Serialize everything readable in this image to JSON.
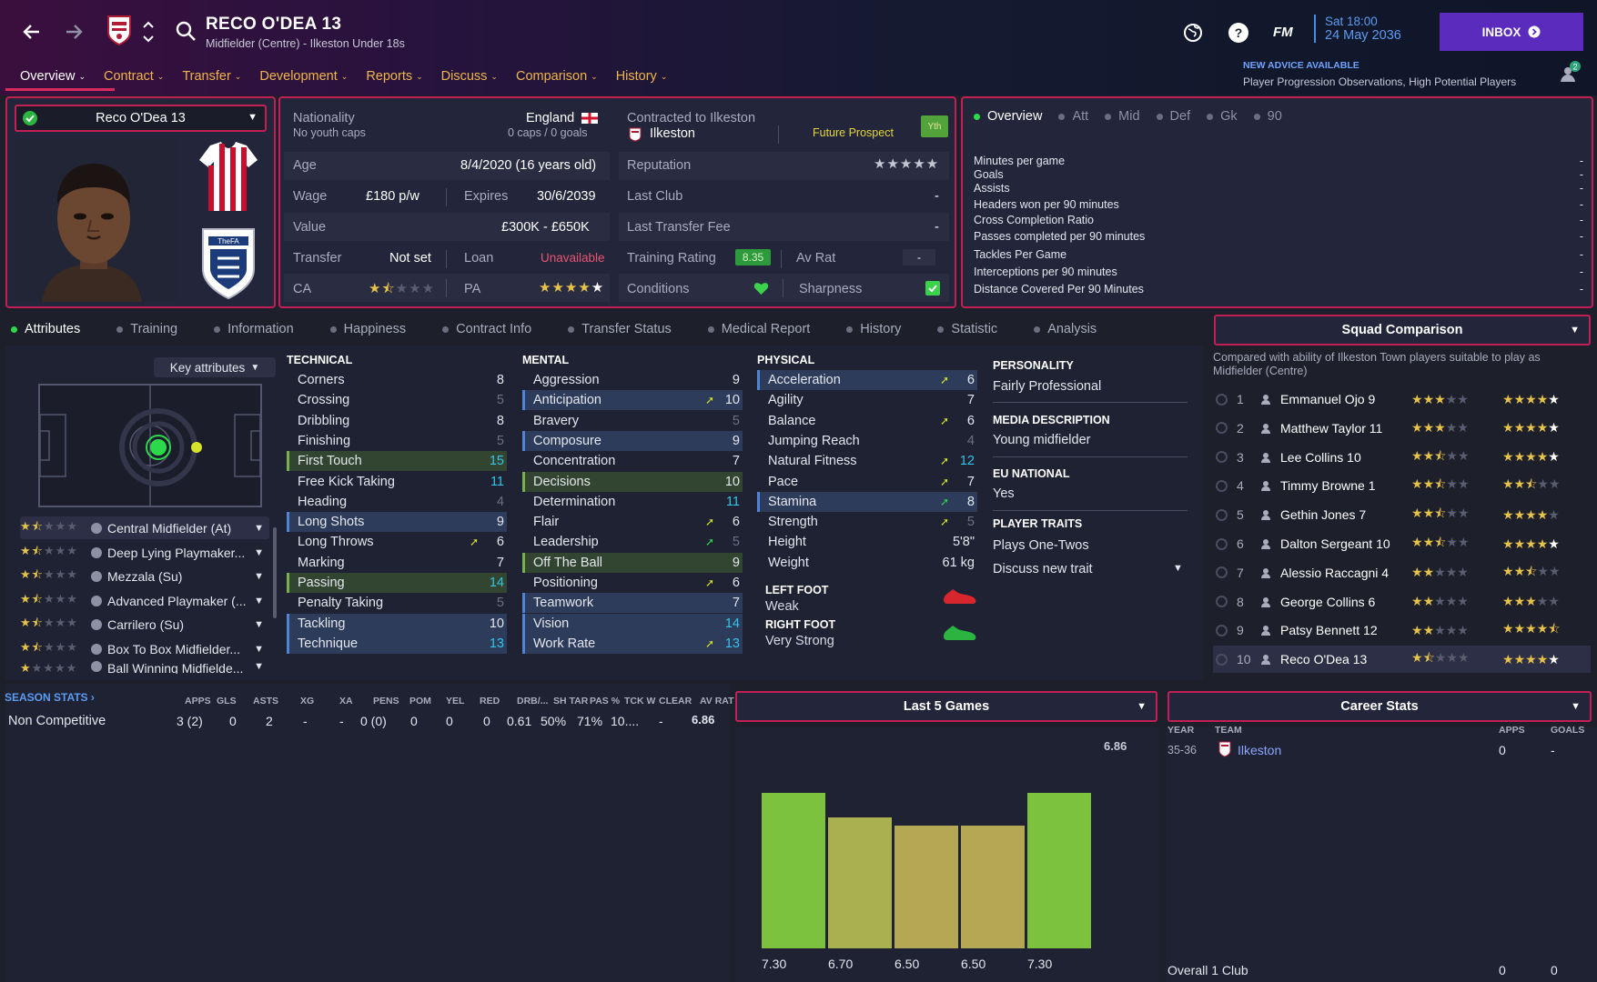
{
  "header": {
    "player_name": "RECO O'DEA 13",
    "subtitle": "Midfielder (Centre) - Ilkeston Under 18s",
    "fm": "FM",
    "time": "Sat 18:00",
    "date": "24 May 2036",
    "inbox": "INBOX",
    "advice_title": "NEW ADVICE AVAILABLE",
    "advice_text": "Player Progression Observations, High Potential Players",
    "advice_count": "2"
  },
  "menu": [
    "Overview",
    "Contract",
    "Transfer",
    "Development",
    "Reports",
    "Discuss",
    "Comparison",
    "History"
  ],
  "profile": {
    "name_select": "Reco O'Dea 13",
    "nationality_label": "Nationality",
    "nationality": "England",
    "youth_caps": "No youth caps",
    "caps": "0 caps / 0 goals",
    "contracted_label": "Contracted to Ilkeston",
    "club": "Ilkeston",
    "future_prospect": "Future Prospect",
    "yth": "Yth",
    "age_label": "Age",
    "age": "8/4/2020 (16 years old)",
    "reputation_label": "Reputation",
    "wage_label": "Wage",
    "wage": "£180 p/w",
    "expires_label": "Expires",
    "expires": "30/6/2039",
    "last_club_label": "Last Club",
    "last_club": "-",
    "value_label": "Value",
    "value": "£300K - £650K",
    "last_fee_label": "Last Transfer Fee",
    "last_fee": "-",
    "transfer_label": "Transfer",
    "transfer": "Not set",
    "loan_label": "Loan",
    "loan": "Unavailable",
    "training_label": "Training Rating",
    "training": "8.35",
    "avrat_label": "Av Rat",
    "avrat": "-",
    "ca_label": "CA",
    "pa_label": "PA",
    "conditions_label": "Conditions",
    "sharpness_label": "Sharpness"
  },
  "overview": {
    "tabs": [
      "Overview",
      "Att",
      "Mid",
      "Def",
      "Gk",
      "90"
    ],
    "stats": [
      {
        "label": "Minutes per game",
        "value": "-"
      },
      {
        "label": "Goals",
        "value": "-"
      },
      {
        "label": "Assists",
        "value": "-"
      },
      {
        "label": "Headers won per 90 minutes",
        "value": "-"
      },
      {
        "label": "Cross Completion Ratio",
        "value": "-"
      },
      {
        "label": "Passes completed per 90 minutes",
        "value": "-"
      },
      {
        "label": "Tackles Per Game",
        "value": "-"
      },
      {
        "label": "Interceptions per 90 minutes",
        "value": "-"
      },
      {
        "label": "Distance Covered Per 90 Minutes",
        "value": "-"
      }
    ]
  },
  "subtabs": [
    "Attributes",
    "Training",
    "Information",
    "Happiness",
    "Contract Info",
    "Transfer Status",
    "Medical Report",
    "History",
    "Statistic",
    "Analysis"
  ],
  "key_attributes": "Key attributes",
  "roles": [
    {
      "label": "Central Midfielder (At)",
      "stars": 1.5
    },
    {
      "label": "Deep Lying Playmaker...",
      "stars": 1.5
    },
    {
      "label": "Mezzala (Su)",
      "stars": 1.5
    },
    {
      "label": "Advanced Playmaker (...",
      "stars": 1.5
    },
    {
      "label": "Carrilero (Su)",
      "stars": 1.5
    },
    {
      "label": "Box To Box Midfielder...",
      "stars": 1.5
    },
    {
      "label": "Ball Winning Midfielde...",
      "stars": 1
    }
  ],
  "technical": {
    "title": "TECHNICAL",
    "items": [
      {
        "name": "Corners",
        "value": "8"
      },
      {
        "name": "Crossing",
        "value": "5"
      },
      {
        "name": "Dribbling",
        "value": "8"
      },
      {
        "name": "Finishing",
        "value": "5"
      },
      {
        "name": "First Touch",
        "value": "15"
      },
      {
        "name": "Free Kick Taking",
        "value": "11"
      },
      {
        "name": "Heading",
        "value": "4"
      },
      {
        "name": "Long Shots",
        "value": "9"
      },
      {
        "name": "Long Throws",
        "value": "6"
      },
      {
        "name": "Marking",
        "value": "7"
      },
      {
        "name": "Passing",
        "value": "14"
      },
      {
        "name": "Penalty Taking",
        "value": "5"
      },
      {
        "name": "Tackling",
        "value": "10"
      },
      {
        "name": "Technique",
        "value": "13"
      }
    ]
  },
  "mental": {
    "title": "MENTAL",
    "items": [
      {
        "name": "Aggression",
        "value": "9"
      },
      {
        "name": "Anticipation",
        "value": "10"
      },
      {
        "name": "Bravery",
        "value": "5"
      },
      {
        "name": "Composure",
        "value": "9"
      },
      {
        "name": "Concentration",
        "value": "7"
      },
      {
        "name": "Decisions",
        "value": "10"
      },
      {
        "name": "Determination",
        "value": "11"
      },
      {
        "name": "Flair",
        "value": "6"
      },
      {
        "name": "Leadership",
        "value": "5"
      },
      {
        "name": "Off The Ball",
        "value": "9"
      },
      {
        "name": "Positioning",
        "value": "6"
      },
      {
        "name": "Teamwork",
        "value": "7"
      },
      {
        "name": "Vision",
        "value": "14"
      },
      {
        "name": "Work Rate",
        "value": "13"
      }
    ]
  },
  "physical": {
    "title": "PHYSICAL",
    "items": [
      {
        "name": "Acceleration",
        "value": "6"
      },
      {
        "name": "Agility",
        "value": "7"
      },
      {
        "name": "Balance",
        "value": "6"
      },
      {
        "name": "Jumping Reach",
        "value": "4"
      },
      {
        "name": "Natural Fitness",
        "value": "12"
      },
      {
        "name": "Pace",
        "value": "7"
      },
      {
        "name": "Stamina",
        "value": "8"
      },
      {
        "name": "Strength",
        "value": "5"
      },
      {
        "name": "Height",
        "value": "5'8\""
      },
      {
        "name": "Weight",
        "value": "61 kg"
      }
    ],
    "left_foot_label": "LEFT FOOT",
    "left_foot": "Weak",
    "right_foot_label": "RIGHT FOOT",
    "right_foot": "Very Strong"
  },
  "personality": {
    "personality_label": "PERSONALITY",
    "personality": "Fairly Professional",
    "media_label": "MEDIA DESCRIPTION",
    "media": "Young midfielder",
    "eu_label": "EU NATIONAL",
    "eu": "Yes",
    "traits_label": "PLAYER TRAITS",
    "trait": "Plays One-Twos",
    "discuss": "Discuss new trait"
  },
  "squad": {
    "title": "Squad Comparison",
    "desc": "Compared with ability of Ilkeston Town players suitable to play as Midfielder (Centre)",
    "rows": [
      {
        "n": "1",
        "name": "Emmanuel Ojo 9",
        "ca": 3,
        "pa": 5
      },
      {
        "n": "2",
        "name": "Matthew Taylor 11",
        "ca": 3,
        "pa": 5
      },
      {
        "n": "3",
        "name": "Lee Collins 10",
        "ca": 2.5,
        "pa": 5
      },
      {
        "n": "4",
        "name": "Timmy Browne 1",
        "ca": 2.5,
        "pa": 2.5
      },
      {
        "n": "5",
        "name": "Gethin Jones 7",
        "ca": 2.5,
        "pa": 4
      },
      {
        "n": "6",
        "name": "Dalton Sergeant 10",
        "ca": 2.5,
        "pa": 5
      },
      {
        "n": "7",
        "name": "Alessio Raccagni 4",
        "ca": 2,
        "pa": 2.5
      },
      {
        "n": "8",
        "name": "George Collins 6",
        "ca": 2,
        "pa": 3
      },
      {
        "n": "9",
        "name": "Patsy Bennett 12",
        "ca": 2,
        "pa": 4.5
      },
      {
        "n": "10",
        "name": "Reco O'Dea 13",
        "ca": 1.5,
        "pa": 5
      }
    ]
  },
  "season_stats": {
    "title": "SEASON STATS",
    "columns": [
      "APPS",
      "GLS",
      "ASTS",
      "XG",
      "XA",
      "PENS",
      "POM",
      "YEL",
      "RED",
      "DRB/...",
      "SH TAR",
      "PAS %",
      "TCK W",
      "CLEAR",
      "AV RAT"
    ],
    "row_label": "Non Competitive",
    "row": [
      "3 (2)",
      "0",
      "2",
      "-",
      "-",
      "0 (0)",
      "0",
      "0",
      "0",
      "0.61",
      "50%",
      "71%",
      "10....",
      "-",
      "6.86"
    ]
  },
  "chart_data": {
    "type": "bar",
    "title": "Last 5 Games",
    "categories": [
      "7.30",
      "6.70",
      "6.50",
      "6.50",
      "7.30"
    ],
    "values": [
      7.3,
      6.7,
      6.5,
      6.5,
      7.3
    ],
    "average_label": "6.86",
    "average": 6.86,
    "colors": [
      "#7cc23f",
      "#a8b04f",
      "#b4a854",
      "#b4a854",
      "#7cc23f"
    ]
  },
  "career": {
    "title": "Career Stats",
    "cols": [
      "YEAR",
      "TEAM",
      "APPS",
      "GOALS"
    ],
    "row": {
      "year": "35-36",
      "team": "Ilkeston",
      "apps": "0",
      "goals": "-"
    },
    "total_label": "Overall 1 Club",
    "total_apps": "0",
    "total_goals": "0"
  }
}
